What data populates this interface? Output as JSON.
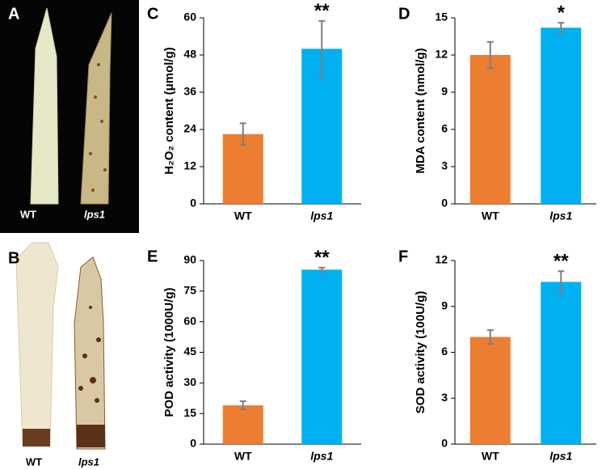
{
  "photos": [
    {
      "panel": "A",
      "labels": [
        "WT",
        "lps1"
      ]
    },
    {
      "panel": "B",
      "labels": [
        "WT",
        "lps1"
      ]
    }
  ],
  "chart_data": [
    {
      "type": "bar",
      "panel": "C",
      "ylabel": "H₂O₂ content (μmol/g)",
      "categories": [
        "WT",
        "lps1"
      ],
      "values": [
        22.5,
        50
      ],
      "errors": [
        3.5,
        9
      ],
      "colors": [
        "#ed7d31",
        "#00b0f0"
      ],
      "annotation": "**",
      "ylim": [
        0,
        60
      ],
      "yticks": [
        0,
        12,
        24,
        36,
        48,
        60
      ]
    },
    {
      "type": "bar",
      "panel": "D",
      "ylabel": "MDA content (nmol/g)",
      "categories": [
        "WT",
        "lps1"
      ],
      "values": [
        12,
        14.2
      ],
      "errors": [
        1.05,
        0.4
      ],
      "colors": [
        "#ed7d31",
        "#00b0f0"
      ],
      "annotation": "*",
      "ylim": [
        0,
        15
      ],
      "yticks": [
        0,
        3,
        6,
        9,
        12,
        15
      ]
    },
    {
      "type": "bar",
      "panel": "E",
      "ylabel": "POD activity (1000U/g)",
      "categories": [
        "WT",
        "lps1"
      ],
      "values": [
        19,
        85.5
      ],
      "errors": [
        2,
        1
      ],
      "colors": [
        "#ed7d31",
        "#00b0f0"
      ],
      "annotation": "**",
      "ylim": [
        0,
        90
      ],
      "yticks": [
        0,
        15,
        30,
        45,
        60,
        75,
        90
      ]
    },
    {
      "type": "bar",
      "panel": "F",
      "ylabel": "SOD activity (100U/g)",
      "categories": [
        "WT",
        "lps1"
      ],
      "values": [
        7,
        10.6
      ],
      "errors": [
        0.45,
        0.7
      ],
      "colors": [
        "#ed7d31",
        "#00b0f0"
      ],
      "annotation": "**",
      "ylim": [
        0,
        12
      ],
      "yticks": [
        0,
        3,
        6,
        9,
        12
      ]
    }
  ]
}
